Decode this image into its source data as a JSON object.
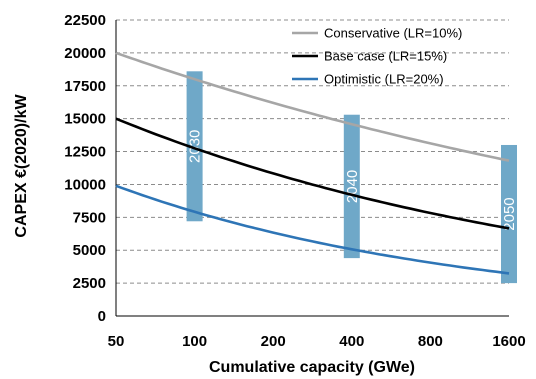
{
  "chart_data": {
    "type": "line",
    "ylabel": "CAPEX €(2020)/kW",
    "xlabel": "Cumulative capacity (GWe)",
    "x_scale": "log2",
    "x_ticks": [
      50,
      100,
      200,
      400,
      800,
      1600
    ],
    "x_tick_labels": [
      "50",
      "100",
      "200",
      "400",
      "800",
      "1600"
    ],
    "xlim": [
      50,
      1600
    ],
    "ylim": [
      0,
      22500
    ],
    "y_ticks": [
      0,
      2500,
      5000,
      7500,
      10000,
      12500,
      15000,
      17500,
      20000,
      22500
    ],
    "y_tick_labels": [
      "0",
      "2500",
      "5000",
      "7500",
      "10000",
      "12500",
      "15000",
      "17500",
      "20000",
      "22500"
    ],
    "grid": "horizontal dashed",
    "legend_position": "top-right",
    "series": [
      {
        "name": "Conservative (LR=10%)",
        "color": "#a6a6a6",
        "x": [
          50,
          100,
          200,
          400,
          800,
          1600
        ],
        "y": [
          20000,
          18000,
          16200,
          14580,
          13120,
          11810
        ]
      },
      {
        "name": "Base case (LR=15%)",
        "color": "#000000",
        "x": [
          50,
          100,
          200,
          400,
          800,
          1600
        ],
        "y": [
          15000,
          12750,
          10840,
          9210,
          7830,
          6660
        ]
      },
      {
        "name": "Optimistic (LR=20%)",
        "color": "#2e75b6",
        "x": [
          50,
          100,
          200,
          400,
          800,
          1600
        ],
        "y": [
          9900,
          7920,
          6340,
          5070,
          4060,
          3240
        ]
      }
    ],
    "annotations": [
      {
        "label": "2030",
        "x": 100,
        "y_low": 7200,
        "y_high": 18600,
        "color": "#6fa8c8"
      },
      {
        "label": "2040",
        "x": 400,
        "y_low": 4400,
        "y_high": 15300,
        "color": "#6fa8c8"
      },
      {
        "label": "2050",
        "x": 1600,
        "y_low": 2500,
        "y_high": 13000,
        "color": "#6fa8c8"
      }
    ]
  }
}
